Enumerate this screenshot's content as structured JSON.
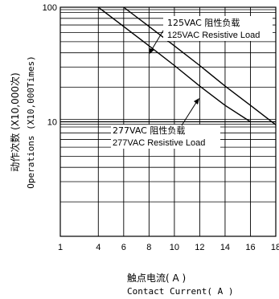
{
  "chart_data": {
    "type": "line",
    "xlabel_cn": "触点电流( A )",
    "xlabel_en": "Contact Current( A )",
    "ylabel_cn": "动作次数 (X10,000次)",
    "ylabel_en": "Operations (X10,000Times)",
    "x_ticks": [
      1,
      4,
      6,
      8,
      10,
      12,
      14,
      16,
      18
    ],
    "x_tick_labels": [
      "1",
      "4",
      "6",
      "8",
      "10",
      "12",
      "14",
      "16",
      "18"
    ],
    "xlim": [
      1,
      18
    ],
    "y_scale": "log",
    "ylim": [
      1,
      100
    ],
    "y_tick_labels": [
      {
        "value": 100,
        "label": "100"
      },
      {
        "value": 10,
        "label": "10"
      }
    ],
    "grid": true,
    "series": [
      {
        "name_cn": "125VAC 阻性负载",
        "name_en": "125VAC Resistive Load",
        "x": [
          6,
          8,
          10,
          12,
          14,
          16,
          18
        ],
        "y": [
          100,
          68,
          46,
          31,
          20.5,
          13.9,
          9.4
        ]
      },
      {
        "name_cn": "277VAC 阻性负载",
        "name_en": "277VAC Resistive Load",
        "x": [
          4,
          6,
          8,
          10,
          12,
          14,
          16
        ],
        "y": [
          100,
          68,
          46,
          31,
          20.5,
          13.9,
          10
        ]
      }
    ]
  }
}
